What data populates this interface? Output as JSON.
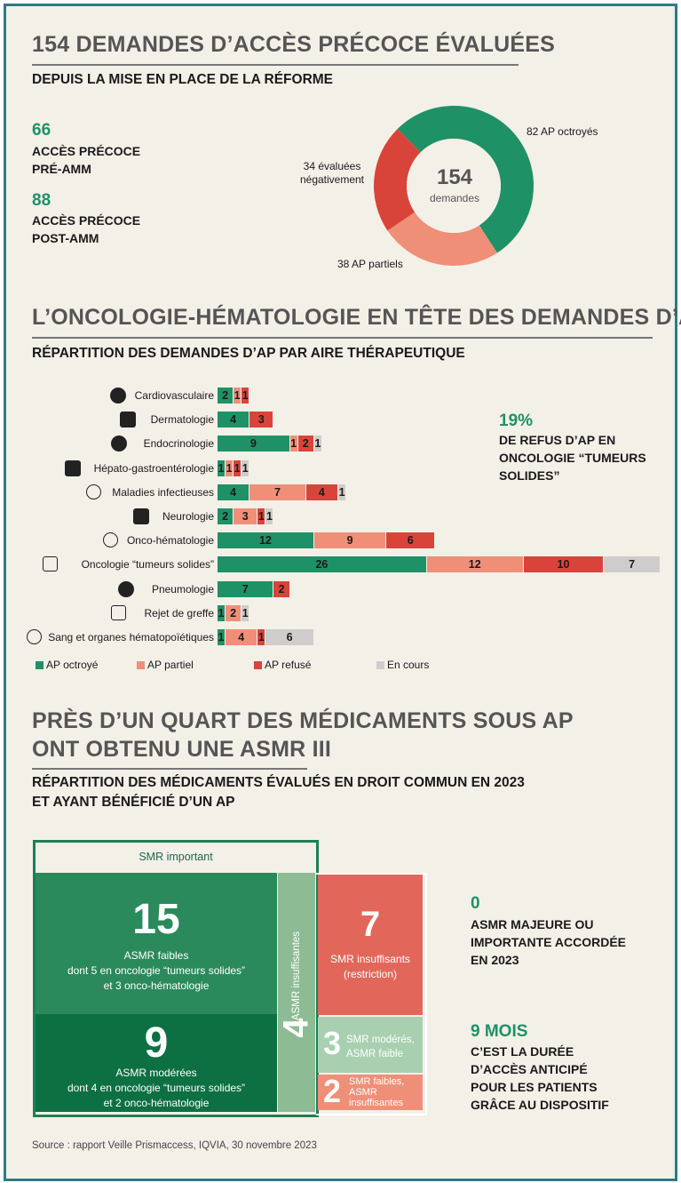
{
  "section1": {
    "title": "154 DEMANDES D’ACCÈS PRÉCOCE ÉVALUÉES",
    "subtitle": "DEPUIS LA MISE EN PLACE DE LA RÉFORME",
    "pre_amm": {
      "value": "66",
      "label1": "ACCÈS PRÉCOCE",
      "label2": "PRÉ-AMM"
    },
    "post_amm": {
      "value": "88",
      "label1": "ACCÈS PRÉCOCE",
      "label2": "POST-AMM"
    }
  },
  "section2": {
    "title": "L’ONCOLOGIE-HÉMATOLOGIE EN TÊTE DES DEMANDES D’AP",
    "subtitle": "RÉPARTITION DES DEMANDES D’AP PAR AIRE THÉRAPEUTIQUE",
    "callout": {
      "value": "19%",
      "line1": "DE REFUS D’AP EN",
      "line2": "ONCOLOGIE “TUMEURS",
      "line3": "SOLIDES”"
    }
  },
  "section3": {
    "title_line1": "PRÈS D’UN QUART DES MÉDICAMENTS SOUS AP",
    "title_line2": "ONT OBTENU UNE ASMR III",
    "subtitle_line1": "RÉPARTITION DES MÉDICAMENTS ÉVALUÉS EN DROIT COMMUN EN 2023",
    "subtitle_line2": "ET AYANT BÉNÉFICIÉ D’UN AP",
    "smr_important": "SMR important",
    "box15": {
      "value": "15",
      "l1": "ASMR faibles",
      "l2": "dont 5 en oncologie “tumeurs solides”",
      "l3": "et 3 onco-hématologie"
    },
    "box9": {
      "value": "9",
      "l1": "ASMR modérées",
      "l2": "dont 4 en oncologie “tumeurs solides”",
      "l3": "et 2 onco-hématologie"
    },
    "box4": {
      "value": "4",
      "label": "ASMR insuffisantes"
    },
    "box7": {
      "value": "7",
      "l1": "SMR insuffisants",
      "l2": "(restriction)"
    },
    "box3": {
      "value": "3",
      "l1": "SMR modérés,",
      "l2": "ASMR faible"
    },
    "box2": {
      "value": "2",
      "l1": "SMR faibles,",
      "l2": "ASMR",
      "l3": "insuffisantes"
    },
    "stat0": {
      "value": "0",
      "l1": "ASMR MAJEURE OU",
      "l2": "IMPORTANTE ACCORDÉE",
      "l3": "EN 2023"
    },
    "stat9": {
      "value": "9 MOIS",
      "l1": "C’EST LA DURÉE",
      "l2": "D’ACCÈS ANTICIPÉ",
      "l3": "POUR LES PATIENTS",
      "l4": "GRÂCE AU DISPOSITIF"
    }
  },
  "source": "Source : rapport Veille Prismaccess, IQVIA, 30 novembre 2023",
  "colors": {
    "octroye": "#1f9166",
    "partiel": "#ef8f78",
    "refuse": "#d9443a",
    "en_cours": "#cfcdcb",
    "teal_frame": "#2f7a83"
  },
  "icons": [
    "heart-icon",
    "skin-icon",
    "thyroid-icon",
    "liver-icon",
    "virus-icon",
    "brain-icon",
    "cell-icon",
    "tumor-icon",
    "lungs-icon",
    "transplant-icon",
    "blood-icon"
  ],
  "chart_data": [
    {
      "type": "pie",
      "center_value": "154",
      "center_label": "demandes",
      "slices": [
        {
          "name": "82 AP octroyés",
          "value": 82,
          "color": "#1f9166"
        },
        {
          "name": "38 AP partiels",
          "value": 38,
          "color": "#ef8f78"
        },
        {
          "name": "34 évaluées négativement",
          "value": 34,
          "color": "#d9443a"
        }
      ]
    },
    {
      "type": "bar",
      "orientation": "horizontal",
      "stacked": true,
      "categories": [
        "Cardiovasculaire",
        "Dermatologie",
        "Endocrinologie",
        "Hépato-gastroentérologie",
        "Maladies infectieuses",
        "Neurologie",
        "Onco-hématologie",
        "Oncologie “tumeurs solides”",
        "Pneumologie",
        "Rejet de greffe",
        "Sang et organes hématopoïétiques"
      ],
      "series": [
        {
          "name": "AP octroyé",
          "color": "#1f9166",
          "values": [
            2,
            4,
            9,
            1,
            4,
            2,
            12,
            26,
            7,
            1,
            1
          ]
        },
        {
          "name": "AP partiel",
          "color": "#ef8f78",
          "values": [
            1,
            0,
            1,
            1,
            7,
            3,
            9,
            12,
            0,
            2,
            4
          ]
        },
        {
          "name": "AP refusé",
          "color": "#d9443a",
          "values": [
            1,
            3,
            2,
            1,
            4,
            1,
            6,
            10,
            2,
            0,
            1
          ]
        },
        {
          "name": "En cours",
          "color": "#cfcdcb",
          "values": [
            0,
            0,
            1,
            1,
            1,
            1,
            0,
            7,
            0,
            1,
            6
          ]
        }
      ],
      "legend_position": "bottom"
    }
  ]
}
